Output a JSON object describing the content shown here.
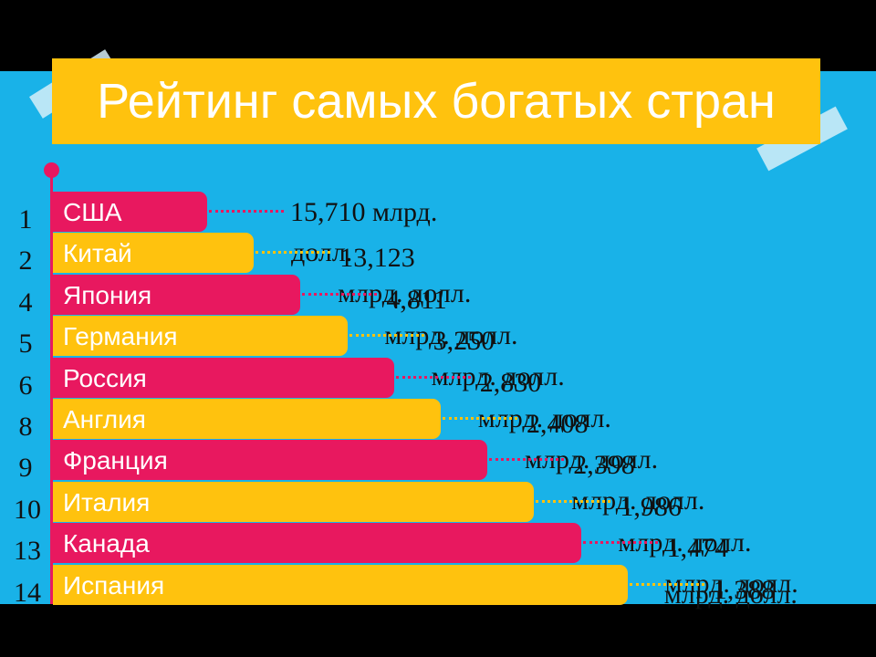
{
  "title": "Рейтинг самых богатых стран",
  "colors": {
    "pink": "#e8185f",
    "yellow": "#ffc20e",
    "background": "#19b2e8"
  },
  "chart_data": {
    "type": "bar",
    "orientation": "horizontal",
    "title": "Рейтинг самых богатых стран",
    "unit": "млрд. долл.",
    "categories": [
      "США",
      "Китай",
      "Япония",
      "Германия",
      "Россия",
      "Англия",
      "Франция",
      "Италия",
      "Канада",
      "Испания"
    ],
    "ranks": [
      "1",
      "2",
      "4",
      "5",
      "6",
      "8",
      "9",
      "10",
      "13",
      "14"
    ],
    "value_labels": [
      "15,710",
      "13,123",
      "4,811",
      "3,250",
      "2,830",
      "2,408",
      "2,398",
      "1,986",
      "1,474",
      "1,388"
    ],
    "series": [
      {
        "values": [
          15710,
          13123,
          4811,
          3250,
          2830,
          2408,
          2398,
          1986,
          1474,
          1388
        ]
      }
    ]
  }
}
